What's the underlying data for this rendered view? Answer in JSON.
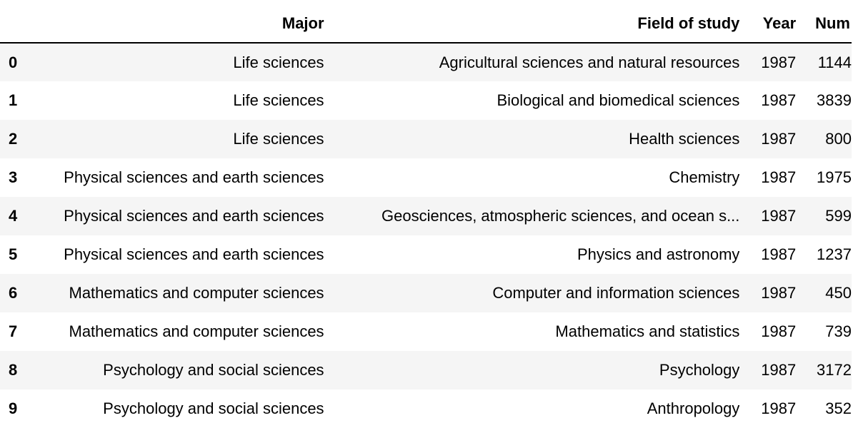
{
  "table": {
    "columns": {
      "index": "",
      "major": "Major",
      "field": "Field of study",
      "year": "Year",
      "num": "Num"
    },
    "rows": [
      {
        "index": "0",
        "major": "Life sciences",
        "field": "Agricultural sciences and natural resources",
        "year": "1987",
        "num": "1144"
      },
      {
        "index": "1",
        "major": "Life sciences",
        "field": "Biological and biomedical sciences",
        "year": "1987",
        "num": "3839"
      },
      {
        "index": "2",
        "major": "Life sciences",
        "field": "Health sciences",
        "year": "1987",
        "num": "800"
      },
      {
        "index": "3",
        "major": "Physical sciences and earth sciences",
        "field": "Chemistry",
        "year": "1987",
        "num": "1975"
      },
      {
        "index": "4",
        "major": "Physical sciences and earth sciences",
        "field": "Geosciences, atmospheric sciences, and ocean s...",
        "year": "1987",
        "num": "599"
      },
      {
        "index": "5",
        "major": "Physical sciences and earth sciences",
        "field": "Physics and astronomy",
        "year": "1987",
        "num": "1237"
      },
      {
        "index": "6",
        "major": "Mathematics and computer sciences",
        "field": "Computer and information sciences",
        "year": "1987",
        "num": "450"
      },
      {
        "index": "7",
        "major": "Mathematics and computer sciences",
        "field": "Mathematics and statistics",
        "year": "1987",
        "num": "739"
      },
      {
        "index": "8",
        "major": "Psychology and social sciences",
        "field": "Psychology",
        "year": "1987",
        "num": "3172"
      },
      {
        "index": "9",
        "major": "Psychology and social sciences",
        "field": "Anthropology",
        "year": "1987",
        "num": "352"
      }
    ]
  }
}
